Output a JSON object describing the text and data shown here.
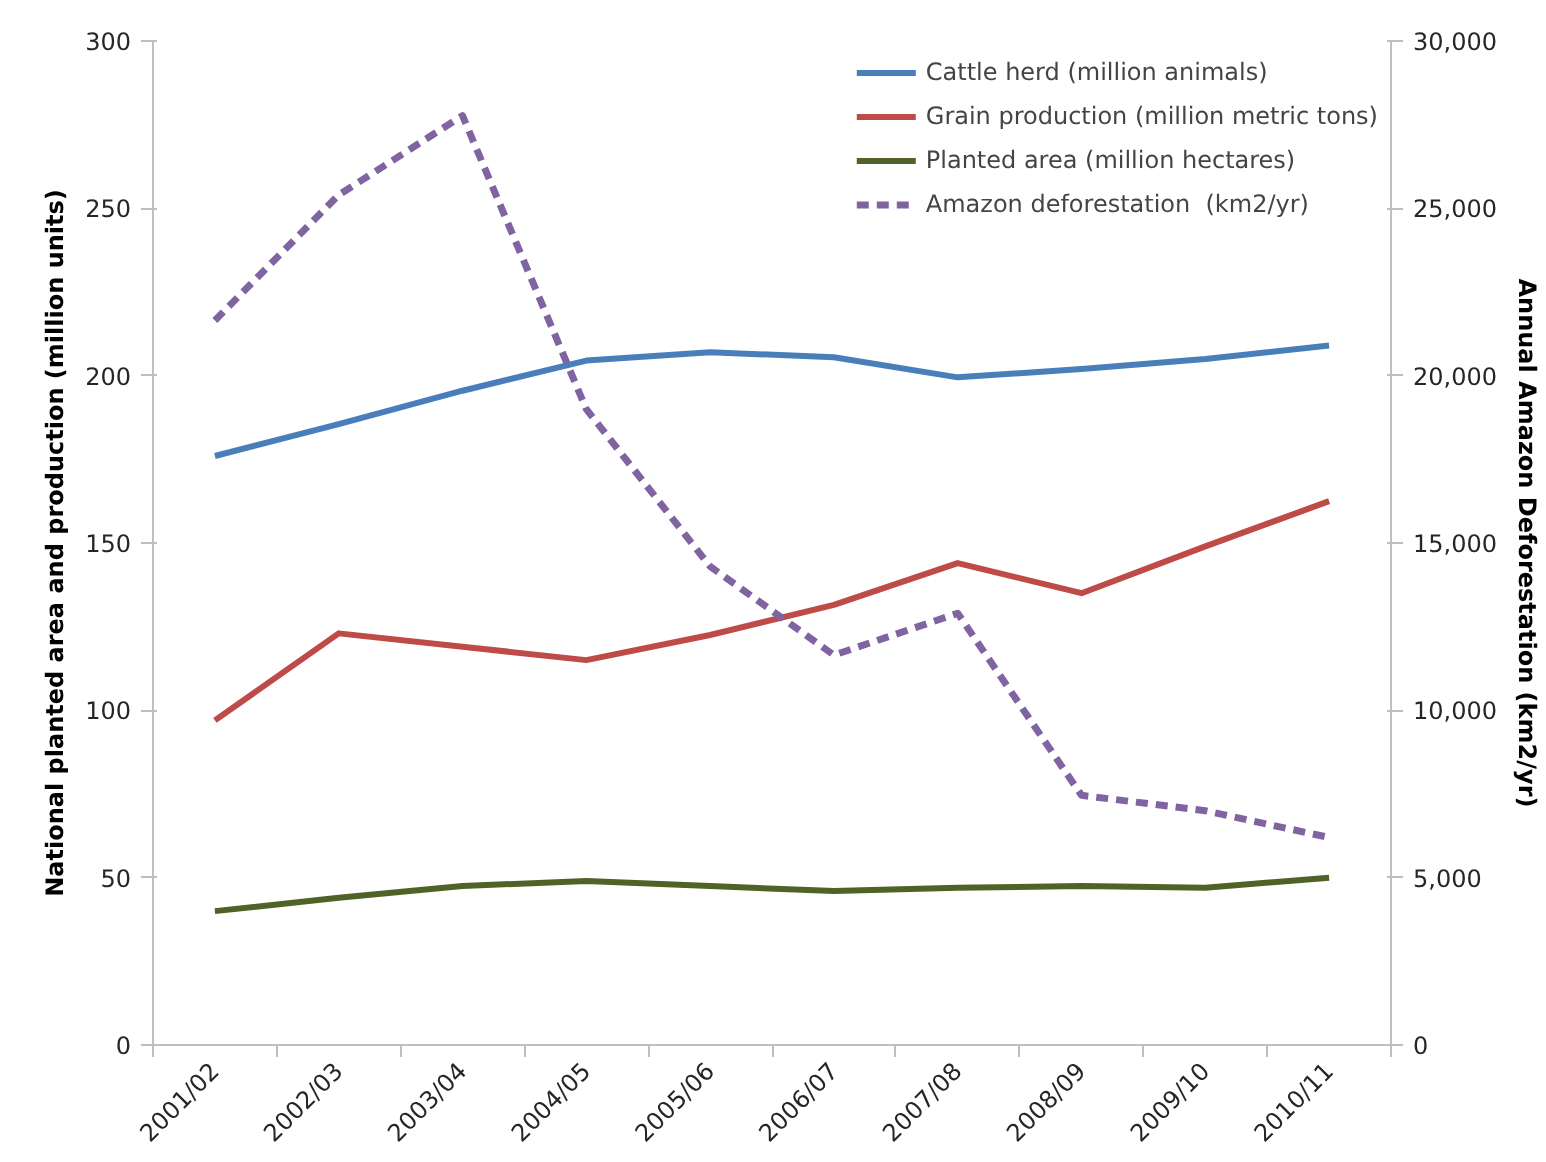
{
  "chart_data": {
    "type": "line",
    "categories": [
      "2001/02",
      "2002/03",
      "2003/04",
      "2004/05",
      "2005/06",
      "2006/07",
      "2007/08",
      "2008/09",
      "2009/10",
      "2010/11"
    ],
    "series": [
      {
        "name": "Cattle herd (million animals)",
        "color": "#4a7ebb",
        "values": [
          176,
          185.5,
          195.5,
          204.5,
          207,
          205.5,
          199.5,
          202,
          205,
          209
        ]
      },
      {
        "name": "Grain production (million metric tons)",
        "color": "#be4b48",
        "values": [
          97,
          123,
          119,
          115,
          122.5,
          131.5,
          144,
          135,
          149,
          162.5
        ]
      },
      {
        "name": "Planted area (million hectares)",
        "color": "#4f6228",
        "values": [
          40,
          44,
          47.5,
          49,
          47.5,
          46,
          47,
          47.5,
          47,
          50
        ]
      },
      {
        "name": "Amazon deforestation  (km2/yr)",
        "color": "#8064a2",
        "values": [
          21650,
          25400,
          27770,
          19000,
          14300,
          11650,
          12900,
          7460,
          7000,
          6200
        ],
        "axis": "y2",
        "line_style": "dashed"
      }
    ],
    "ylabel": "National planted area and production (million units)",
    "y2label": "Annual Amazon Deforestation (km2/yr)",
    "ylim": [
      0,
      300
    ],
    "yticks": [
      0,
      50,
      100,
      150,
      200,
      250,
      300
    ],
    "y2lim": [
      0,
      30000
    ],
    "y2ticks": [
      {
        "value": 0,
        "label": "0"
      },
      {
        "value": 5000,
        "label": "5,000"
      },
      {
        "value": 10000,
        "label": "10,000"
      },
      {
        "value": 15000,
        "label": "15,000"
      },
      {
        "value": 20000,
        "label": "20,000"
      },
      {
        "value": 25000,
        "label": "25,000"
      },
      {
        "value": 30000,
        "label": "30,000"
      }
    ],
    "legend": "top right",
    "grid": false,
    "marker": "none"
  }
}
